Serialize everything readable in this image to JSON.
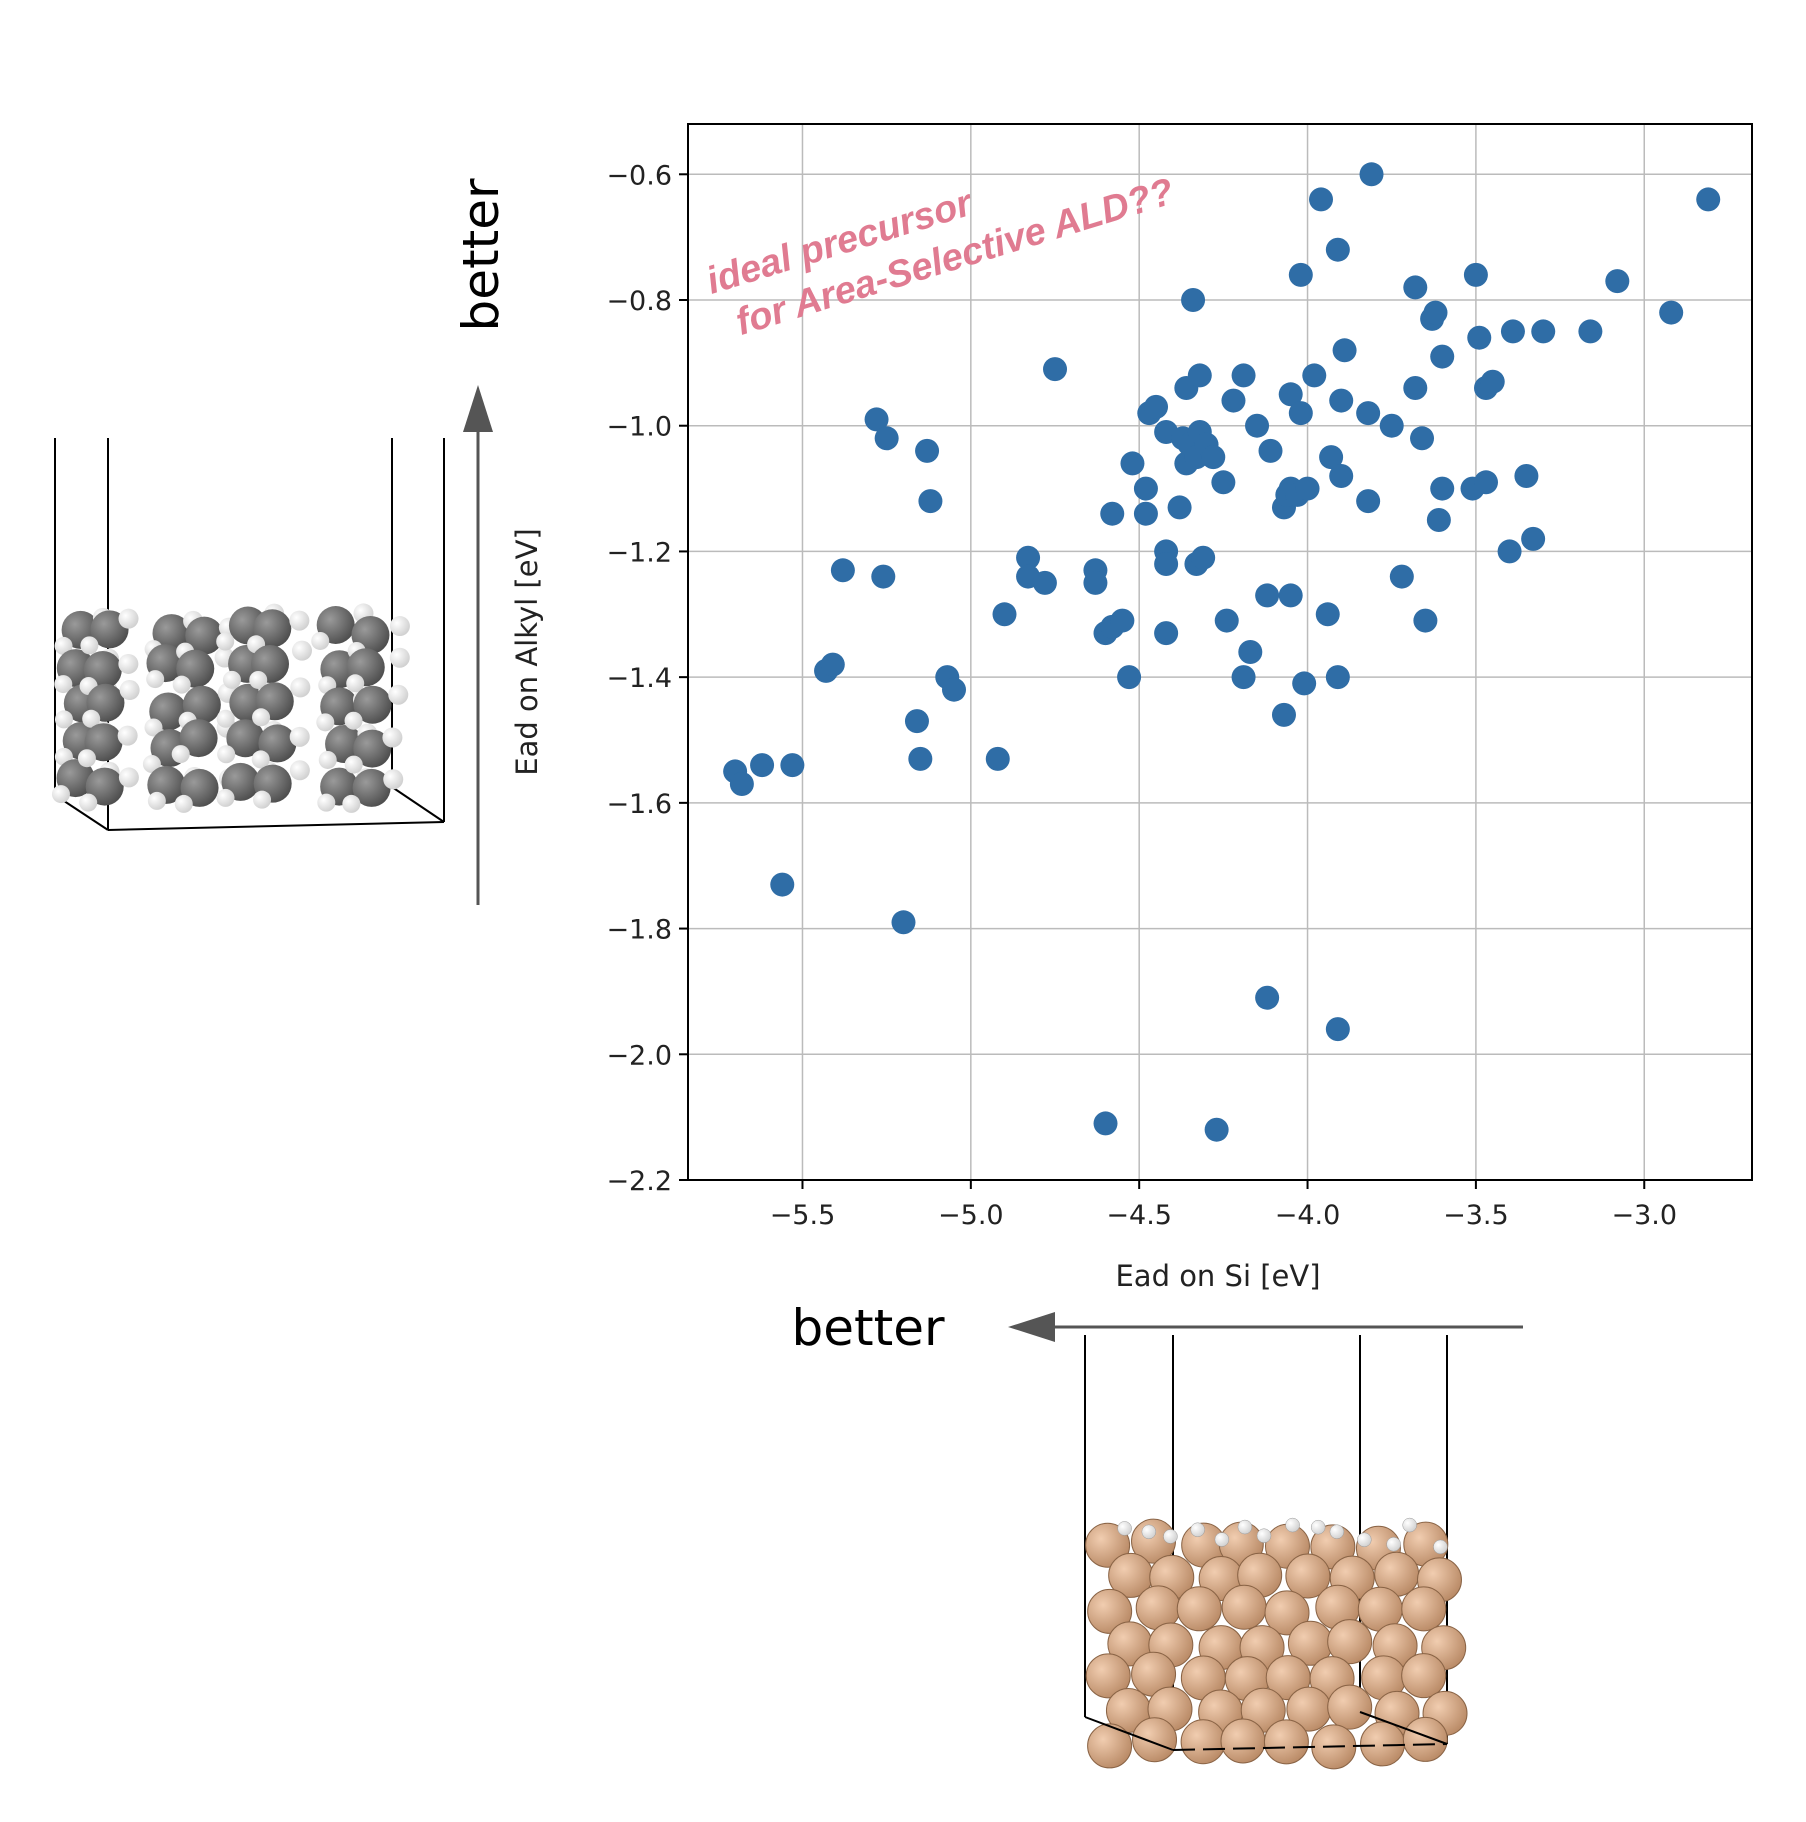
{
  "colors": {
    "marker": "#2f6da6",
    "annotation": "#e07b91",
    "arrow": "#555555",
    "grid": "#bbbbbb",
    "alkyl_carbon": "#6d6d6d",
    "hydrogen": "#f1f1f1",
    "copper": "#d2a27f"
  },
  "icons": {
    "alkyl_surface": "alkyl-surface-slab-icon",
    "copper_surface": "copper-surface-slab-icon"
  },
  "labels": {
    "better_vertical": "better",
    "better_horizontal": "better"
  },
  "chart_data": {
    "type": "scatter",
    "xlabel": "Ead on Si [eV]",
    "ylabel": "Ead on Alkyl [eV]",
    "xlim": [
      -5.84,
      -2.68
    ],
    "ylim": [
      -2.2,
      -0.52
    ],
    "grid": true,
    "x_ticks": [
      -5.5,
      -5.0,
      -4.5,
      -4.0,
      -3.5,
      -3.0
    ],
    "x_tick_labels": [
      "−5.5",
      "−5.0",
      "−4.5",
      "−4.0",
      "−3.5",
      "−3.0"
    ],
    "y_ticks": [
      -2.2,
      -2.0,
      -1.8,
      -1.6,
      -1.4,
      -1.2,
      -1.0,
      -0.8,
      -0.6
    ],
    "y_tick_labels": [
      "−2.2",
      "−2.0",
      "−1.8",
      "−1.6",
      "−1.4",
      "−1.2",
      "−1.0",
      "−0.8",
      "−0.6"
    ],
    "annotation": [
      "ideal precursor",
      "for Area-Selective ALD??"
    ],
    "points": [
      {
        "x": -5.7,
        "y": -1.55
      },
      {
        "x": -5.68,
        "y": -1.57
      },
      {
        "x": -5.62,
        "y": -1.54
      },
      {
        "x": -5.53,
        "y": -1.54
      },
      {
        "x": -5.56,
        "y": -1.73
      },
      {
        "x": -5.43,
        "y": -1.39
      },
      {
        "x": -5.41,
        "y": -1.38
      },
      {
        "x": -5.38,
        "y": -1.23
      },
      {
        "x": -5.28,
        "y": -0.99
      },
      {
        "x": -5.25,
        "y": -1.02
      },
      {
        "x": -5.26,
        "y": -1.24
      },
      {
        "x": -5.13,
        "y": -1.04
      },
      {
        "x": -5.12,
        "y": -1.12
      },
      {
        "x": -5.2,
        "y": -1.79
      },
      {
        "x": -5.16,
        "y": -1.47
      },
      {
        "x": -5.15,
        "y": -1.53
      },
      {
        "x": -5.07,
        "y": -1.4
      },
      {
        "x": -5.05,
        "y": -1.42
      },
      {
        "x": -4.92,
        "y": -1.53
      },
      {
        "x": -4.9,
        "y": -1.3
      },
      {
        "x": -4.83,
        "y": -1.21
      },
      {
        "x": -4.83,
        "y": -1.24
      },
      {
        "x": -4.78,
        "y": -1.25
      },
      {
        "x": -4.75,
        "y": -0.91
      },
      {
        "x": -4.63,
        "y": -1.23
      },
      {
        "x": -4.63,
        "y": -1.25
      },
      {
        "x": -4.6,
        "y": -1.33
      },
      {
        "x": -4.58,
        "y": -1.32
      },
      {
        "x": -4.55,
        "y": -1.31
      },
      {
        "x": -4.58,
        "y": -1.14
      },
      {
        "x": -4.6,
        "y": -2.11
      },
      {
        "x": -4.53,
        "y": -1.4
      },
      {
        "x": -4.52,
        "y": -1.06
      },
      {
        "x": -4.48,
        "y": -1.1
      },
      {
        "x": -4.48,
        "y": -1.14
      },
      {
        "x": -4.47,
        "y": -0.98
      },
      {
        "x": -4.45,
        "y": -0.97
      },
      {
        "x": -4.42,
        "y": -1.01
      },
      {
        "x": -4.42,
        "y": -1.2
      },
      {
        "x": -4.42,
        "y": -1.22
      },
      {
        "x": -4.42,
        "y": -1.33
      },
      {
        "x": -4.38,
        "y": -1.13
      },
      {
        "x": -4.37,
        "y": -1.02
      },
      {
        "x": -4.36,
        "y": -1.06
      },
      {
        "x": -4.36,
        "y": -0.94
      },
      {
        "x": -4.35,
        "y": -1.03
      },
      {
        "x": -4.33,
        "y": -1.05
      },
      {
        "x": -4.34,
        "y": -0.8
      },
      {
        "x": -4.32,
        "y": -0.92
      },
      {
        "x": -4.33,
        "y": -1.22
      },
      {
        "x": -4.31,
        "y": -1.21
      },
      {
        "x": -4.32,
        "y": -1.01
      },
      {
        "x": -4.3,
        "y": -1.03
      },
      {
        "x": -4.28,
        "y": -1.05
      },
      {
        "x": -4.27,
        "y": -2.12
      },
      {
        "x": -4.25,
        "y": -1.09
      },
      {
        "x": -4.24,
        "y": -1.31
      },
      {
        "x": -4.22,
        "y": -0.96
      },
      {
        "x": -4.19,
        "y": -0.92
      },
      {
        "x": -4.19,
        "y": -1.4
      },
      {
        "x": -4.17,
        "y": -1.36
      },
      {
        "x": -4.15,
        "y": -1.0
      },
      {
        "x": -4.12,
        "y": -1.91
      },
      {
        "x": -4.12,
        "y": -1.27
      },
      {
        "x": -4.11,
        "y": -1.04
      },
      {
        "x": -4.07,
        "y": -1.46
      },
      {
        "x": -4.07,
        "y": -1.13
      },
      {
        "x": -4.06,
        "y": -1.11
      },
      {
        "x": -4.05,
        "y": -0.95
      },
      {
        "x": -4.05,
        "y": -1.27
      },
      {
        "x": -4.05,
        "y": -1.1
      },
      {
        "x": -4.03,
        "y": -1.11
      },
      {
        "x": -4.02,
        "y": -0.98
      },
      {
        "x": -4.02,
        "y": -0.76
      },
      {
        "x": -4.01,
        "y": -1.41
      },
      {
        "x": -4.0,
        "y": -1.1
      },
      {
        "x": -3.98,
        "y": -0.92
      },
      {
        "x": -3.96,
        "y": -0.64
      },
      {
        "x": -3.94,
        "y": -1.3
      },
      {
        "x": -3.93,
        "y": -1.05
      },
      {
        "x": -3.91,
        "y": -1.96
      },
      {
        "x": -3.91,
        "y": -1.4
      },
      {
        "x": -3.91,
        "y": -0.72
      },
      {
        "x": -3.9,
        "y": -1.08
      },
      {
        "x": -3.9,
        "y": -0.96
      },
      {
        "x": -3.89,
        "y": -0.88
      },
      {
        "x": -3.82,
        "y": -0.98
      },
      {
        "x": -3.82,
        "y": -1.12
      },
      {
        "x": -3.81,
        "y": -0.6
      },
      {
        "x": -3.75,
        "y": -1.0
      },
      {
        "x": -3.72,
        "y": -1.24
      },
      {
        "x": -3.68,
        "y": -0.78
      },
      {
        "x": -3.68,
        "y": -0.94
      },
      {
        "x": -3.66,
        "y": -1.02
      },
      {
        "x": -3.65,
        "y": -1.31
      },
      {
        "x": -3.63,
        "y": -0.83
      },
      {
        "x": -3.62,
        "y": -0.82
      },
      {
        "x": -3.61,
        "y": -1.15
      },
      {
        "x": -3.6,
        "y": -1.1
      },
      {
        "x": -3.6,
        "y": -0.89
      },
      {
        "x": -3.51,
        "y": -1.1
      },
      {
        "x": -3.5,
        "y": -0.76
      },
      {
        "x": -3.49,
        "y": -0.86
      },
      {
        "x": -3.47,
        "y": -1.09
      },
      {
        "x": -3.47,
        "y": -0.94
      },
      {
        "x": -3.45,
        "y": -0.93
      },
      {
        "x": -3.4,
        "y": -1.2
      },
      {
        "x": -3.39,
        "y": -0.85
      },
      {
        "x": -3.35,
        "y": -1.08
      },
      {
        "x": -3.33,
        "y": -1.18
      },
      {
        "x": -3.3,
        "y": -0.85
      },
      {
        "x": -3.16,
        "y": -0.85
      },
      {
        "x": -3.08,
        "y": -0.77
      },
      {
        "x": -2.92,
        "y": -0.82
      },
      {
        "x": -2.81,
        "y": -0.64
      }
    ]
  }
}
